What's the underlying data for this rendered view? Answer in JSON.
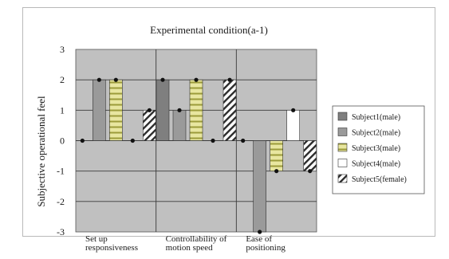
{
  "chart_data": {
    "type": "bar",
    "title": "Experimental condition(a-1)",
    "ylabel": "Subjective operational feel",
    "xlabel": "",
    "ylim": [
      -3,
      3
    ],
    "yticks": [
      "3",
      "2",
      "1",
      "0",
      "-1",
      "-2",
      "-3"
    ],
    "grid": true,
    "legend_position": "right",
    "categories": [
      [
        "Set up",
        "responsiveness"
      ],
      [
        "Controllability of",
        "motion speed"
      ],
      [
        "Ease of",
        "positioning"
      ]
    ],
    "series": [
      {
        "name": "Subject1(male)",
        "values": [
          0,
          2,
          0
        ],
        "pattern": "dark",
        "color": "#7f7f7f"
      },
      {
        "name": "Subject2(male)",
        "values": [
          2,
          1,
          -3
        ],
        "pattern": "gray",
        "color": "#9a9a9a"
      },
      {
        "name": "Subject3(male)",
        "values": [
          2,
          2,
          -1
        ],
        "pattern": "hstripe",
        "color": "#e8e6a0"
      },
      {
        "name": "Subject4(male)",
        "values": [
          0,
          0,
          1
        ],
        "pattern": "white",
        "color": "#ffffff"
      },
      {
        "name": "Subject5(female)",
        "values": [
          1,
          2,
          -1
        ],
        "pattern": "diag",
        "color": "#ffffff"
      }
    ],
    "colors": {
      "plot_background": "#c0c0c0",
      "frame": "#b9b9b9",
      "text": "#1a1a1a"
    }
  }
}
